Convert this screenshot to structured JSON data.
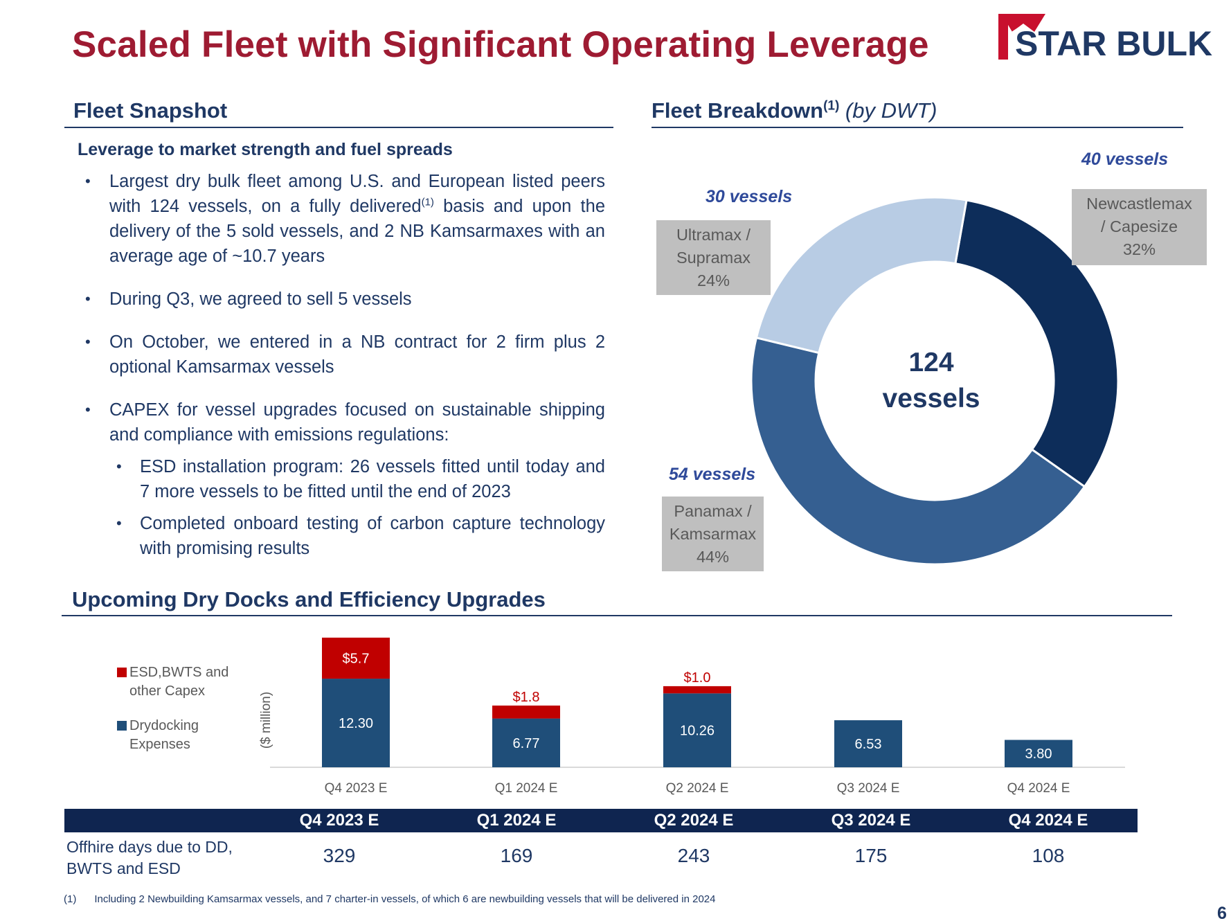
{
  "title": "Scaled Fleet with Significant Operating Leverage",
  "logo": {
    "text": "STAR BULK",
    "colors": {
      "star": "#c8102e",
      "text": "#1f3864"
    }
  },
  "fleet_snapshot": {
    "heading": "Fleet Snapshot",
    "subheading": "Leverage to market strength and fuel spreads",
    "bullets": [
      {
        "text_a": "Largest dry bulk fleet among U.S. and European listed peers with 124 vessels, on a fully delivered",
        "sup": "(1)",
        "text_b": " basis and upon the delivery of the 5 sold vessels, and 2 NB Kamsarmaxes with an average age of ~10.7 years"
      },
      {
        "text": "During Q3, we agreed to sell 5 vessels"
      },
      {
        "text": "On October, we entered in a NB contract for 2 firm plus 2 optional Kamsarmax vessels"
      },
      {
        "text": "CAPEX for vessel upgrades focused on sustainable shipping and compliance with emissions regulations:"
      }
    ],
    "sub_bullets": [
      "ESD installation program: 26 vessels fitted until today and 7 more vessels to be fitted until the end of 2023",
      "Completed onboard testing of carbon capture technology with promising results"
    ]
  },
  "fleet_breakdown": {
    "heading": "Fleet Breakdown",
    "heading_sup": "(1)",
    "heading_note": "(by DWT)",
    "center_line1": "124",
    "center_line2": "vessels",
    "segments": [
      {
        "count_label": "40 vessels",
        "line1": "Newcastlemax",
        "line2": "/ Capesize",
        "pct_label": "32%",
        "pct": 32,
        "color": "#0d2d5a"
      },
      {
        "count_label": "54 vessels",
        "line1": "Panamax /",
        "line2": "Kamsarmax",
        "pct_label": "44%",
        "pct": 44,
        "color": "#355f91"
      },
      {
        "count_label": "30 vessels",
        "line1": "Ultramax /",
        "line2": "Supramax",
        "pct_label": "24%",
        "pct": 24,
        "color": "#b8cce4"
      }
    ]
  },
  "drydocks": {
    "heading": "Upcoming Dry Docks and Efficiency Upgrades",
    "y_unit": "($ million)",
    "legend": [
      {
        "line1": "ESD,BWTS and",
        "line2": "other Capex",
        "color": "#c00000"
      },
      {
        "line1": "Drydocking",
        "line2": "Expenses",
        "color": "#1f4e79"
      }
    ]
  },
  "chart_data": {
    "type": "bar",
    "stacked": true,
    "categories": [
      "Q4 2023 E",
      "Q1 2024 E",
      "Q2 2024 E",
      "Q3 2024 E",
      "Q4 2024 E"
    ],
    "series": [
      {
        "name": "Drydocking Expenses",
        "values": [
          12.3,
          6.77,
          10.26,
          6.53,
          3.8
        ],
        "labels": [
          "12.30",
          "6.77",
          "10.26",
          "6.53",
          "3.80"
        ],
        "color": "#1f4e79"
      },
      {
        "name": "ESD,BWTS and other Capex",
        "values": [
          5.7,
          1.8,
          1.0,
          0,
          0
        ],
        "labels": [
          "$5.7",
          "$1.8",
          "$1.0",
          "",
          ""
        ],
        "color": "#c00000"
      }
    ],
    "ylabel": "($ million)",
    "ylim": [
      0,
      18
    ],
    "grid": false,
    "legend_position": "left"
  },
  "offhire_table": {
    "columns": [
      "Q4 2023 E",
      "Q1 2024 E",
      "Q2 2024 E",
      "Q3 2024 E",
      "Q4 2024 E"
    ],
    "row_label_line1": "Offhire days due to DD,",
    "row_label_line2": "BWTS and ESD",
    "values": [
      "329",
      "169",
      "243",
      "175",
      "108"
    ]
  },
  "footnote": {
    "marker": "(1)",
    "text": "Including  2 Newbuilding Kamsarmax vessels, and 7 charter-in vessels, of which 6 are newbuilding vessels that will be delivered in 2024"
  },
  "page_number": "6"
}
